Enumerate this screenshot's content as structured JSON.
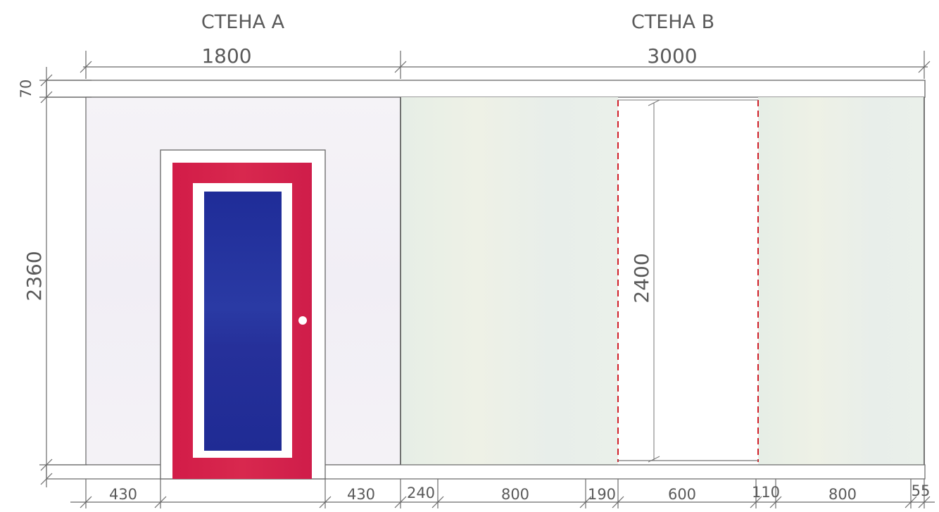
{
  "walls": {
    "a": {
      "title": "СТЕНА А",
      "width": "1800"
    },
    "b": {
      "title": "СТЕНА В",
      "width": "3000"
    }
  },
  "dimensions": {
    "top_band": "70",
    "wall_height": "2360",
    "opening_height": "2400",
    "bottom": [
      "430",
      "430",
      "240",
      "800",
      "190",
      "600",
      "110",
      "800",
      "55"
    ]
  },
  "colors": {
    "door_frame": "#d0204a",
    "door_glass": "#25309a",
    "hidden_line": "#d0202a",
    "wall_a_fill": "#f3f0f6",
    "wall_b_fill": "#e9efe8"
  }
}
